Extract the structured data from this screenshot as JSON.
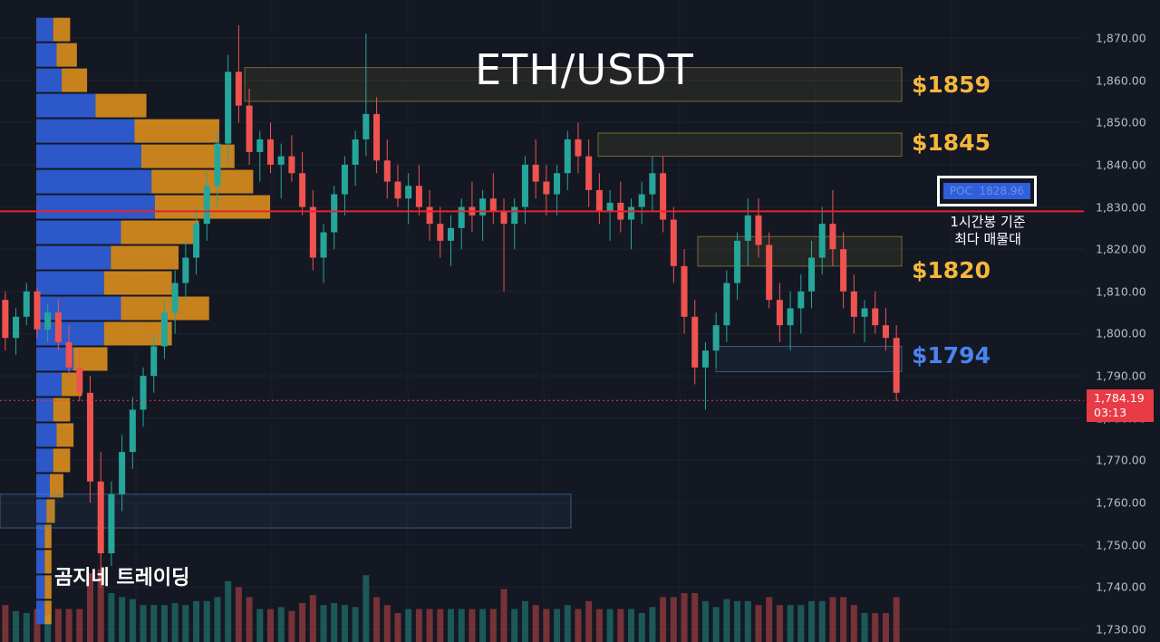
{
  "header": {
    "title": "ETH/USDT"
  },
  "watermark": "곰지네 트레이딩",
  "levels": [
    {
      "label": "$1859",
      "price": 1859,
      "color": "#f5b73c"
    },
    {
      "label": "$1845",
      "price": 1845,
      "color": "#f5b73c"
    },
    {
      "label": "$1820",
      "price": 1820,
      "color": "#f5b73c"
    },
    {
      "label": "$1794",
      "price": 1794,
      "color": "#4a84f0"
    }
  ],
  "poc": {
    "label": "POC",
    "value": "1828.96",
    "note_line1": "1시간봉 기준",
    "note_line2": "최다 매물대"
  },
  "current_price": {
    "value": "1,784.19",
    "countdown": "03:13",
    "color": "#e83b46"
  },
  "colors": {
    "up": "#26a69a",
    "down": "#ef5350",
    "profile_buy": "#2f5fdc",
    "profile_sell": "#e8951c",
    "poc_line": "#e8232b"
  },
  "chart_data": {
    "type": "candlestick",
    "title": "ETH/USDT",
    "y_axis_ticks": [
      "1,870.00",
      "1,860.00",
      "1,850.00",
      "1,840.00",
      "1,830.00",
      "1,820.00",
      "1,810.00",
      "1,800.00",
      "1,790.00",
      "1,780.00",
      "1,770.00",
      "1,760.00",
      "1,750.00",
      "1,740.00",
      "1,730.00"
    ],
    "y_tick_values": [
      1870,
      1860,
      1850,
      1840,
      1830,
      1820,
      1810,
      1800,
      1790,
      1780,
      1770,
      1760,
      1750,
      1740,
      1730
    ],
    "ylim": [
      1727,
      1879
    ],
    "poc_price": 1828.96,
    "last_price": 1784.19,
    "zones": [
      {
        "top": 1863,
        "bottom": 1855,
        "kind": "supply"
      },
      {
        "top": 1847.5,
        "bottom": 1842,
        "kind": "supply"
      },
      {
        "top": 1823,
        "bottom": 1816,
        "kind": "supply"
      },
      {
        "top": 1797,
        "bottom": 1791,
        "kind": "demand"
      },
      {
        "top": 1762,
        "bottom": 1754,
        "kind": "demand"
      }
    ],
    "volume_profile": [
      {
        "price": 1872,
        "buy": 0.1,
        "sell": 0.1
      },
      {
        "price": 1866,
        "buy": 0.12,
        "sell": 0.12
      },
      {
        "price": 1860,
        "buy": 0.15,
        "sell": 0.15
      },
      {
        "price": 1854,
        "buy": 0.35,
        "sell": 0.3
      },
      {
        "price": 1848,
        "buy": 0.58,
        "sell": 0.5
      },
      {
        "price": 1842,
        "buy": 0.62,
        "sell": 0.55
      },
      {
        "price": 1836,
        "buy": 0.68,
        "sell": 0.6
      },
      {
        "price": 1830,
        "buy": 0.7,
        "sell": 0.68
      },
      {
        "price": 1824,
        "buy": 0.5,
        "sell": 0.46
      },
      {
        "price": 1818,
        "buy": 0.44,
        "sell": 0.4
      },
      {
        "price": 1812,
        "buy": 0.4,
        "sell": 0.4
      },
      {
        "price": 1806,
        "buy": 0.5,
        "sell": 0.52
      },
      {
        "price": 1800,
        "buy": 0.4,
        "sell": 0.4
      },
      {
        "price": 1794,
        "buy": 0.22,
        "sell": 0.2
      },
      {
        "price": 1788,
        "buy": 0.15,
        "sell": 0.12
      },
      {
        "price": 1782,
        "buy": 0.1,
        "sell": 0.1
      },
      {
        "price": 1776,
        "buy": 0.12,
        "sell": 0.1
      },
      {
        "price": 1770,
        "buy": 0.1,
        "sell": 0.1
      },
      {
        "price": 1764,
        "buy": 0.08,
        "sell": 0.08
      },
      {
        "price": 1758,
        "buy": 0.06,
        "sell": 0.05
      },
      {
        "price": 1752,
        "buy": 0.05,
        "sell": 0.04
      },
      {
        "price": 1746,
        "buy": 0.05,
        "sell": 0.04
      },
      {
        "price": 1740,
        "buy": 0.05,
        "sell": 0.04
      },
      {
        "price": 1734,
        "buy": 0.05,
        "sell": 0.04
      }
    ],
    "candles": [
      [
        1808,
        1810,
        1796,
        1799
      ],
      [
        1799,
        1806,
        1795,
        1804
      ],
      [
        1804,
        1812,
        1802,
        1810
      ],
      [
        1810,
        1811,
        1799,
        1801
      ],
      [
        1801,
        1807,
        1798,
        1805
      ],
      [
        1805,
        1808,
        1796,
        1798
      ],
      [
        1798,
        1802,
        1790,
        1792
      ],
      [
        1792,
        1796,
        1784,
        1786
      ],
      [
        1786,
        1790,
        1760,
        1765
      ],
      [
        1765,
        1772,
        1740,
        1748
      ],
      [
        1748,
        1765,
        1745,
        1762
      ],
      [
        1762,
        1776,
        1758,
        1772
      ],
      [
        1772,
        1785,
        1768,
        1782
      ],
      [
        1782,
        1792,
        1778,
        1790
      ],
      [
        1790,
        1800,
        1786,
        1797
      ],
      [
        1797,
        1808,
        1794,
        1805
      ],
      [
        1805,
        1815,
        1800,
        1812
      ],
      [
        1812,
        1822,
        1808,
        1818
      ],
      [
        1818,
        1830,
        1814,
        1826
      ],
      [
        1826,
        1838,
        1822,
        1835
      ],
      [
        1835,
        1848,
        1830,
        1845
      ],
      [
        1845,
        1866,
        1840,
        1862
      ],
      [
        1862,
        1873,
        1850,
        1854
      ],
      [
        1854,
        1858,
        1840,
        1843
      ],
      [
        1843,
        1848,
        1836,
        1846
      ],
      [
        1846,
        1850,
        1838,
        1840
      ],
      [
        1840,
        1845,
        1832,
        1842
      ],
      [
        1842,
        1847,
        1836,
        1838
      ],
      [
        1838,
        1843,
        1828,
        1830
      ],
      [
        1830,
        1834,
        1815,
        1818
      ],
      [
        1818,
        1826,
        1812,
        1824
      ],
      [
        1824,
        1835,
        1820,
        1833
      ],
      [
        1833,
        1842,
        1828,
        1840
      ],
      [
        1840,
        1848,
        1835,
        1846
      ],
      [
        1846,
        1871,
        1842,
        1852
      ],
      [
        1852,
        1856,
        1838,
        1841
      ],
      [
        1841,
        1846,
        1832,
        1836
      ],
      [
        1836,
        1840,
        1830,
        1832
      ],
      [
        1832,
        1838,
        1826,
        1835
      ],
      [
        1835,
        1840,
        1828,
        1830
      ],
      [
        1830,
        1834,
        1822,
        1826
      ],
      [
        1826,
        1830,
        1818,
        1822
      ],
      [
        1822,
        1828,
        1816,
        1825
      ],
      [
        1825,
        1832,
        1820,
        1830
      ],
      [
        1830,
        1836,
        1824,
        1828
      ],
      [
        1828,
        1834,
        1822,
        1832
      ],
      [
        1832,
        1838,
        1826,
        1829
      ],
      [
        1829,
        1832,
        1810,
        1826
      ],
      [
        1826,
        1832,
        1820,
        1830
      ],
      [
        1830,
        1842,
        1826,
        1840
      ],
      [
        1840,
        1846,
        1832,
        1836
      ],
      [
        1836,
        1840,
        1828,
        1833
      ],
      [
        1833,
        1840,
        1828,
        1838
      ],
      [
        1838,
        1848,
        1834,
        1846
      ],
      [
        1846,
        1850,
        1838,
        1842
      ],
      [
        1842,
        1846,
        1830,
        1834
      ],
      [
        1834,
        1838,
        1826,
        1829
      ],
      [
        1829,
        1834,
        1822,
        1831
      ],
      [
        1831,
        1836,
        1824,
        1827
      ],
      [
        1827,
        1832,
        1820,
        1830
      ],
      [
        1830,
        1836,
        1826,
        1833
      ],
      [
        1833,
        1842,
        1829,
        1838
      ],
      [
        1838,
        1842,
        1824,
        1827
      ],
      [
        1827,
        1830,
        1812,
        1816
      ],
      [
        1816,
        1820,
        1800,
        1804
      ],
      [
        1804,
        1808,
        1788,
        1792
      ],
      [
        1792,
        1798,
        1782,
        1796
      ],
      [
        1796,
        1805,
        1792,
        1802
      ],
      [
        1802,
        1815,
        1798,
        1812
      ],
      [
        1812,
        1824,
        1808,
        1822
      ],
      [
        1822,
        1832,
        1816,
        1828
      ],
      [
        1828,
        1832,
        1818,
        1821
      ],
      [
        1821,
        1824,
        1806,
        1808
      ],
      [
        1808,
        1812,
        1798,
        1802
      ],
      [
        1802,
        1810,
        1796,
        1806
      ],
      [
        1806,
        1814,
        1800,
        1810
      ],
      [
        1810,
        1822,
        1806,
        1818
      ],
      [
        1818,
        1830,
        1814,
        1826
      ],
      [
        1826,
        1834,
        1816,
        1820
      ],
      [
        1820,
        1824,
        1806,
        1810
      ],
      [
        1810,
        1814,
        1800,
        1804
      ],
      [
        1804,
        1808,
        1798,
        1806
      ],
      [
        1806,
        1810,
        1800,
        1802
      ],
      [
        1802,
        1806,
        1796,
        1799
      ],
      [
        1799,
        1802,
        1784,
        1786
      ]
    ]
  }
}
